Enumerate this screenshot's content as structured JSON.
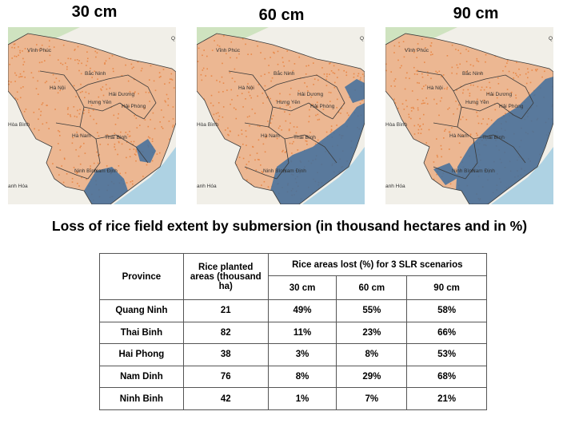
{
  "scenarios": [
    {
      "title": "30 cm",
      "flood": "small"
    },
    {
      "title": "60 cm",
      "flood": "medium"
    },
    {
      "title": "90 cm",
      "flood": "large"
    }
  ],
  "map_place_labels": {
    "vinh_phuc": "Vĩnh Phúc",
    "ha_noi": "Hà Nội",
    "bac_ninh": "Bắc Ninh",
    "hai_duong": "Hải Dương",
    "hung_yen": "Hưng Yên",
    "hai_phong": "Hải Phòng",
    "hoa_binh": "Hòa Bình",
    "ha_nam": "Hà Nam",
    "thai_binh": "Thái Bình",
    "nam_dinh": "Nam Định",
    "ninh_binh": "Ninh Bình",
    "thanh_hoa": "anh Hóa",
    "quang_ninh_fragment": "Q"
  },
  "colors": {
    "rice": "#e8894a",
    "submerged": "#3f6f9e",
    "sea": "#aed2e3",
    "land": "#f1efe8",
    "forest": "#cfe3c0"
  },
  "main_title": "Loss of rice field extent by submersion (in thousand hectares and in %)",
  "table": {
    "header_province": "Province",
    "header_area": "Rice planted areas (thousand ha)",
    "header_lost": "Rice areas lost (%) for 3 SLR scenarios",
    "scenario_headers": [
      "30 cm",
      "60 cm",
      "90 cm"
    ],
    "rows": [
      {
        "province": "Quang Ninh",
        "area": "21",
        "s30": "49%",
        "s60": "55%",
        "s90": "58%"
      },
      {
        "province": "Thai Binh",
        "area": "82",
        "s30": "11%",
        "s60": "23%",
        "s90": "66%"
      },
      {
        "province": "Hai Phong",
        "area": "38",
        "s30": "3%",
        "s60": "8%",
        "s90": "53%"
      },
      {
        "province": "Nam Dinh",
        "area": "76",
        "s30": "8%",
        "s60": "29%",
        "s90": "68%"
      },
      {
        "province": "Ninh Binh",
        "area": "42",
        "s30": "1%",
        "s60": "7%",
        "s90": "21%"
      }
    ]
  }
}
